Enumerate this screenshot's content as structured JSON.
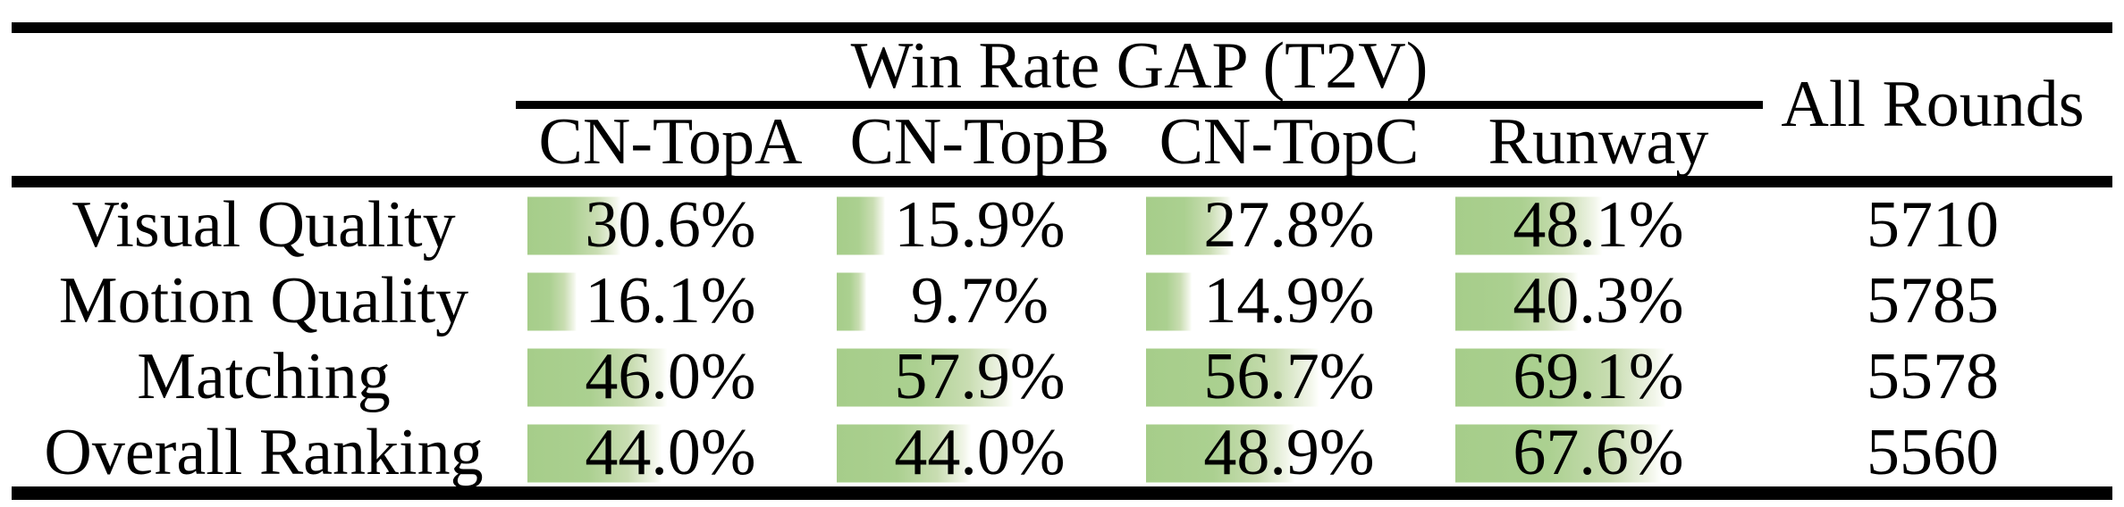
{
  "table": {
    "group_header": "Win Rate GAP (T2V)",
    "all_rounds_header": "All Rounds",
    "columns": [
      "CN-TopA",
      "CN-TopB",
      "CN-TopC",
      "Runway"
    ],
    "rows": [
      {
        "label": "Visual Quality",
        "values": [
          30.6,
          15.9,
          27.8,
          48.1
        ],
        "display": [
          "30.6%",
          "15.9%",
          "27.8%",
          "48.1%"
        ],
        "all_rounds": "5710"
      },
      {
        "label": "Motion Quality",
        "values": [
          16.1,
          9.7,
          14.9,
          40.3
        ],
        "display": [
          "16.1%",
          "9.7%",
          "14.9%",
          "40.3%"
        ],
        "all_rounds": "5785"
      },
      {
        "label": "Matching",
        "values": [
          46.0,
          57.9,
          56.7,
          69.1
        ],
        "display": [
          "46.0%",
          "57.9%",
          "56.7%",
          "69.1%"
        ],
        "all_rounds": "5578"
      },
      {
        "label": "Overall Ranking",
        "values": [
          44.0,
          44.0,
          48.9,
          67.6
        ],
        "display": [
          "44.0%",
          "44.0%",
          "48.9%",
          "67.6%"
        ],
        "all_rounds": "5560"
      }
    ]
  },
  "colors": {
    "bar_green": "#a8ce8c",
    "bar_fade_end": "#ffffff",
    "rule": "#000000",
    "background": "#ffffff"
  },
  "chart_data": {
    "type": "table",
    "title": "Win Rate GAP (T2V)",
    "columns": [
      "CN-TopA",
      "CN-TopB",
      "CN-TopC",
      "Runway",
      "All Rounds"
    ],
    "categories": [
      "Visual Quality",
      "Motion Quality",
      "Matching",
      "Overall Ranking"
    ],
    "series": [
      {
        "name": "CN-TopA",
        "values": [
          30.6,
          16.1,
          46.0,
          44.0
        ]
      },
      {
        "name": "CN-TopB",
        "values": [
          15.9,
          9.7,
          57.9,
          44.0
        ]
      },
      {
        "name": "CN-TopC",
        "values": [
          27.8,
          14.9,
          56.7,
          48.9
        ]
      },
      {
        "name": "Runway",
        "values": [
          48.1,
          40.3,
          69.1,
          67.6
        ]
      }
    ],
    "all_rounds": [
      5710,
      5785,
      5578,
      5560
    ],
    "value_unit": "%",
    "bar_scale_max": 100,
    "notes": "green data bars behind each percentage, width proportional to value"
  }
}
